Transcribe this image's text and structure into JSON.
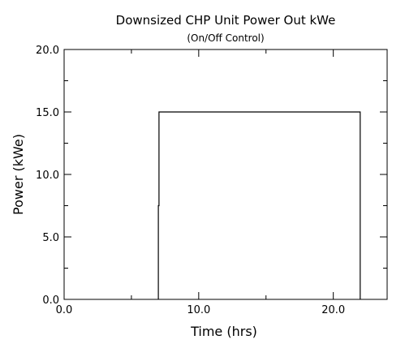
{
  "chart_data": {
    "type": "line",
    "title": "Downsized CHP Unit Power Out kWe",
    "subtitle": "(On/Off Control)",
    "xlabel": "Time (hrs)",
    "ylabel": "Power (kWe)",
    "xlim": [
      0,
      24
    ],
    "ylim": [
      0,
      20
    ],
    "x_ticks": [
      0,
      10,
      20
    ],
    "x_tick_labels": [
      "0.0",
      "10.0",
      "20.0"
    ],
    "x_minor_ticks": [
      5,
      15
    ],
    "y_ticks": [
      0,
      5,
      10,
      15,
      20
    ],
    "y_tick_labels": [
      "0.0",
      "5.0",
      "10.0",
      "15.0",
      "20.0"
    ],
    "y_minor_ticks": [
      2.5,
      7.5,
      12.5,
      17.5
    ],
    "grid": false,
    "series": [
      {
        "x": [
          7.0,
          7.0,
          7.05,
          7.05,
          22.0,
          22.0
        ],
        "y": [
          0,
          7.5,
          7.5,
          15,
          15,
          0
        ],
        "color": "#000000"
      }
    ]
  }
}
